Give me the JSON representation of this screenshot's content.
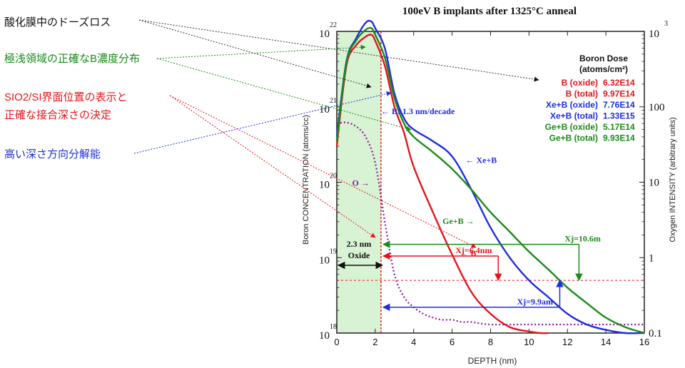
{
  "chart_data": {
    "type": "line",
    "title": "100eV B implants after 1325°C anneal",
    "xlabel": "DEPTH (nm)",
    "ylabel_left": "Boron CONCENTRATION (atoms/cc)",
    "ylabel_right": "Oxygen INTENSITY (arbitrary units)",
    "xlim": [
      0,
      16
    ],
    "x_ticks": [
      0,
      2,
      4,
      6,
      8,
      10,
      12,
      14,
      16
    ],
    "ylim_left": [
      1e+18,
      1e+22
    ],
    "y_left_scale": "log",
    "y_left_ticks": [
      {
        "value": 1e+18,
        "base": "10",
        "exp": "18"
      },
      {
        "value": 1e+19,
        "base": "10",
        "exp": "19"
      },
      {
        "value": 1e+20,
        "base": "10",
        "exp": "20"
      },
      {
        "value": 1e+21,
        "base": "10",
        "exp": "21"
      },
      {
        "value": 1e+22,
        "base": "10",
        "exp": "22"
      }
    ],
    "ylim_right": [
      0.1,
      1000
    ],
    "y_right_scale": "log",
    "y_right_ticks": [
      {
        "value": 0.1,
        "label": "0.1",
        "exp": ""
      },
      {
        "value": 1,
        "label": "1",
        "exp": ""
      },
      {
        "value": 10,
        "label": "10",
        "exp": ""
      },
      {
        "value": 100,
        "label": "100",
        "exp": ""
      },
      {
        "value": 1000,
        "label": "10",
        "exp": "3"
      }
    ],
    "series": [
      {
        "name": "B",
        "color": "#e8141b",
        "x": [
          0,
          0.5,
          1,
          1.5,
          1.8,
          2,
          2.5,
          3,
          3.5,
          4,
          5,
          6,
          7,
          8,
          9,
          10,
          10.6,
          11
        ],
        "y": [
          3e+20,
          3.5e+21,
          6.5e+21,
          8.5e+21,
          9e+21,
          7.5e+21,
          3.5e+21,
          1e+21,
          4.5e+20,
          1.6e+20,
          4e+19,
          1.1e+19,
          3.5e+18,
          1.8e+18,
          1.2e+18,
          1.05e+18,
          1e+18,
          1e+18
        ]
      },
      {
        "name": "Xe+B",
        "color": "#1f2de0",
        "x": [
          0,
          0.5,
          1,
          1.5,
          1.8,
          2,
          2.5,
          3,
          3.5,
          4,
          5,
          6,
          7,
          8,
          9,
          10,
          11,
          12,
          13,
          14,
          15,
          16
        ],
        "y": [
          4e+20,
          4e+21,
          8e+21,
          1.3e+22,
          1.35e+22,
          1.1e+22,
          6e+21,
          1.5e+21,
          7e+20,
          5e+20,
          3.5e+20,
          2.2e+20,
          8e+19,
          2.5e+19,
          1e+19,
          5e+18,
          3e+18,
          1.8e+18,
          1.3e+18,
          1.1e+18,
          1e+18,
          1e+18
        ]
      },
      {
        "name": "Ge+B",
        "color": "#1a8a1a",
        "x": [
          0,
          0.5,
          1,
          1.5,
          1.8,
          2,
          2.5,
          3,
          3.5,
          4,
          5,
          6,
          7,
          8,
          9,
          10,
          11,
          12,
          13,
          14,
          15,
          16
        ],
        "y": [
          3.5e+20,
          3.8e+21,
          7.5e+21,
          1.05e+22,
          1.1e+22,
          9e+21,
          4.5e+21,
          1.3e+21,
          6e+20,
          4e+20,
          2.5e+20,
          1.5e+20,
          8e+19,
          4e+19,
          2.2e+19,
          1.2e+19,
          7e+18,
          4e+18,
          2.5e+18,
          1.6e+18,
          1.2e+18,
          1e+18
        ]
      },
      {
        "name": "O",
        "color": "#8a1a9a",
        "dashed": true,
        "axis": "right",
        "x": [
          0,
          0.5,
          1,
          1.5,
          2,
          2.5,
          3,
          3.5,
          4,
          4.5,
          5,
          5.5,
          6,
          6.5,
          7,
          8,
          10,
          12,
          14,
          16
        ],
        "y": [
          60,
          62,
          55,
          40,
          18,
          3,
          0.6,
          0.3,
          0.22,
          0.18,
          0.16,
          0.15,
          0.15,
          0.14,
          0.14,
          0.13,
          0.13,
          0.13,
          0.13,
          0.13
        ]
      }
    ],
    "curve_labels": [
      {
        "text": "B: 1.3 nm/decade",
        "color": "#1f2de0",
        "x": 2.3,
        "y": 8e+20,
        "arrow": "left"
      },
      {
        "text": "O",
        "color": "#8a1a9a",
        "x": 0.8,
        "y": 9e+19,
        "arrow": "right"
      },
      {
        "text": "Xe+B",
        "color": "#1f2de0",
        "x": 6.7,
        "y": 1.8e+20,
        "arrow": "left"
      },
      {
        "text": "Ge+B",
        "color": "#1a8a1a",
        "x": 5.5,
        "y": 2.8e+19,
        "arrow": "right"
      },
      {
        "text": "B",
        "color": "#e8141b",
        "x": 6.4,
        "y": 1.05e+19,
        "arrow": "left"
      }
    ],
    "junctions": [
      {
        "label": "Xj=10.6m",
        "color": "#1a8a1a",
        "x": 12.6
      },
      {
        "label": "Xj=6.4nm",
        "color": "#e8141b",
        "x": 8.4
      },
      {
        "label": "Xj=9.9am",
        "color": "#1f2de0",
        "x": 11.6
      }
    ],
    "oxide_region": {
      "x_end": 2.3,
      "label_thickness": "2.3 nm",
      "label_name": "Oxide"
    },
    "oxide_interface_x": 2.3,
    "reference_level_y": 5e+18,
    "legend": {
      "title": "Boron Dose",
      "subtitle": "(atoms/cm²)",
      "entries": [
        {
          "label": "B (oxide)",
          "value": "6.32E14",
          "color": "#e8141b"
        },
        {
          "label": "B (total)",
          "value": "9.97E14",
          "color": "#e8141b"
        },
        {
          "label": "Xe+B (oxide)",
          "value": "7.76E14",
          "color": "#1f2de0"
        },
        {
          "label": "Xe+B (total)",
          "value": "1.33E15",
          "color": "#1f2de0"
        },
        {
          "label": "Ge+B (oxide)",
          "value": "5.17E14",
          "color": "#1a8a1a"
        },
        {
          "label": "Ge+B (total)",
          "value": "9.93E14",
          "color": "#1a8a1a"
        }
      ]
    },
    "grid": false
  },
  "annotations": [
    {
      "text": "酸化膜中のドーズロス",
      "color": "#111111"
    },
    {
      "text": "極浅領域の正確なB濃度分布",
      "color": "#1a8a1a"
    },
    {
      "text": "SIO2/SI界面位置の表示と",
      "color": "#e8141b"
    },
    {
      "text": "正確な接合深さの決定",
      "color": "#e8141b"
    },
    {
      "text": "高い深さ方向分解能",
      "color": "#1f2de0"
    }
  ]
}
